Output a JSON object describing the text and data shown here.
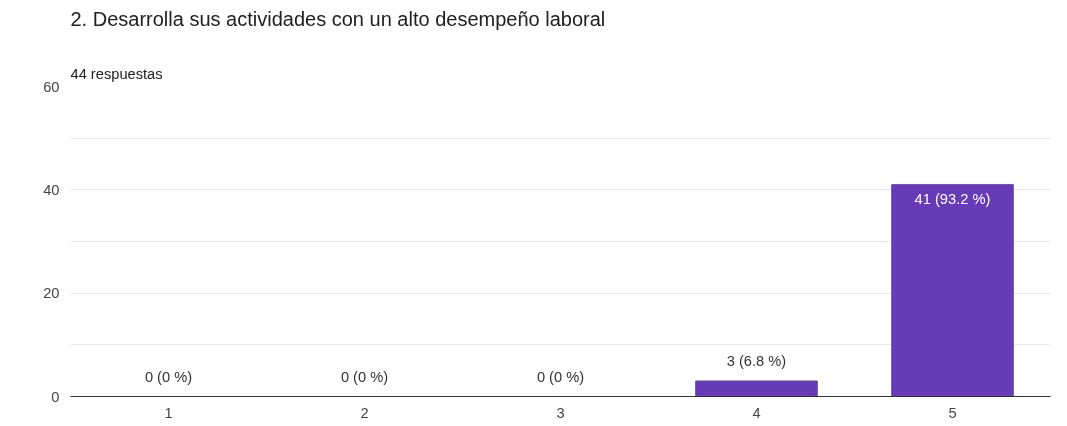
{
  "chart_data": {
    "type": "bar",
    "title": "2. Desarrolla sus actividades con un alto desempeño laboral",
    "subtitle": "44 respuestas",
    "categories": [
      "1",
      "2",
      "3",
      "4",
      "5"
    ],
    "values": [
      0,
      0,
      0,
      3,
      41
    ],
    "value_labels": [
      "0 (0 %)",
      "0 (0 %)",
      "0 (0 %)",
      "3 (6.8 %)",
      "41 (93.2 %)"
    ],
    "color": "#673ab7",
    "ylim": [
      0,
      60
    ],
    "yticks": [
      0,
      {
        "value": 10,
        "label": null
      },
      20,
      {
        "value": 30,
        "label": null
      },
      40,
      {
        "value": 50,
        "label": null
      },
      60
    ],
    "grid": "y"
  }
}
